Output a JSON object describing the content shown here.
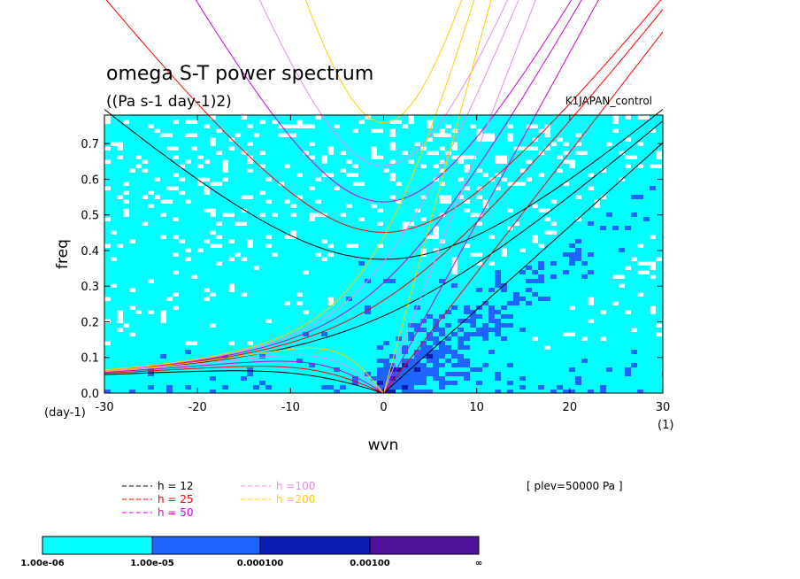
{
  "chart_data": {
    "type": "heatmap",
    "title": "omega S-T power spectrum",
    "subtitle": "((Pa s-1 day-1)2)",
    "experiment": "K1JAPAN_control",
    "xlabel": "wvn",
    "ylabel": "freq",
    "x_unit": "(1)",
    "y_unit": "(day-1)",
    "xlim": [
      -30,
      30
    ],
    "ylim": [
      0,
      0.78
    ],
    "x_ticks": [
      -30,
      -20,
      -10,
      0,
      10,
      20,
      30
    ],
    "x_tick_labels": [
      "-30",
      "-20",
      "-10",
      "0",
      "10",
      "20",
      "30"
    ],
    "y_ticks": [
      0,
      0.1,
      0.2,
      0.3,
      0.4,
      0.5,
      0.6,
      0.7
    ],
    "y_tick_labels": [
      "0.0",
      "0.1",
      "0.2",
      "0.3",
      "0.4",
      "0.5",
      "0.6",
      "0.7"
    ],
    "annotation": "[ plev=50000 Pa ]",
    "contour_levels": [
      "1.00e-06",
      "1.00e-05",
      "0.000100",
      "0.00100",
      "∞"
    ],
    "contour_colors": [
      "#00ffff",
      "#1e64ff",
      "#0a1eb4",
      "#50129b"
    ],
    "dispersion_curves": [
      {
        "label": "h = 12",
        "h": 12,
        "color": "#000000"
      },
      {
        "label": "h = 25",
        "h": 25,
        "color": "#ff0000"
      },
      {
        "label": "h = 50",
        "h": 50,
        "color": "#d200d2"
      },
      {
        "label": "h =100",
        "h": 100,
        "color": "#e68ce6"
      },
      {
        "label": "h =200",
        "h": 200,
        "color": "#ffcc00"
      }
    ]
  }
}
